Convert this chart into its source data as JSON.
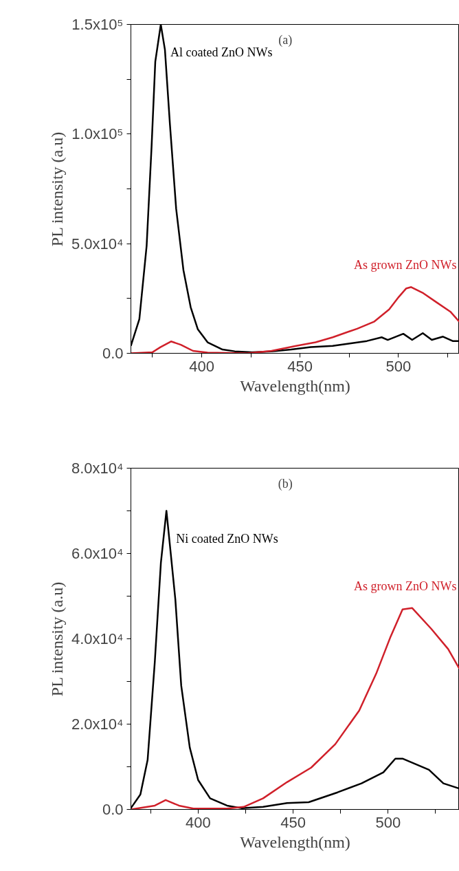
{
  "chart_data": [
    {
      "type": "line",
      "title": "(a)",
      "xlabel": "Wavelength(nm)",
      "ylabel": "PL intensity (a.u)",
      "xlim": [
        364,
        531
      ],
      "ylim": [
        0,
        150000
      ],
      "xticks": [
        {
          "value": 375,
          "label": null
        },
        400,
        {
          "value": 425,
          "label": null
        },
        450,
        {
          "value": 475,
          "label": null
        },
        500,
        {
          "value": 525,
          "label": null
        }
      ],
      "yticks": [
        {
          "value": 0,
          "label": "0.0"
        },
        {
          "value": 25000,
          "label": null
        },
        {
          "value": 50000,
          "label": "5.0x10⁴"
        },
        {
          "value": 75000,
          "label": null
        },
        {
          "value": 100000,
          "label": "1.0x10⁵"
        },
        {
          "value": 125000,
          "label": null
        },
        {
          "value": 150000,
          "label": "1.5x10⁵"
        }
      ],
      "grid": false,
      "line_style": "solid",
      "series": [
        {
          "name": "Al coated ZnO NWs",
          "color": "#000000",
          "x": [
            364,
            368.3,
            372,
            374.5,
            376.4,
            379.2,
            381.3,
            383.8,
            387,
            390.7,
            394.4,
            398,
            403,
            410.6,
            416.8,
            425.5,
            435.5,
            445.5,
            455.4,
            466.6,
            475.3,
            484,
            491.5,
            494.6,
            502.5,
            507,
            512.4,
            517,
            522.7,
            527.6,
            530.9
          ],
          "values": [
            3400,
            15600,
            49000,
            94000,
            133000,
            150000,
            138500,
            105000,
            66000,
            38000,
            21000,
            11000,
            5000,
            1700,
            900,
            500,
            900,
            1700,
            2800,
            3400,
            4500,
            5600,
            7300,
            6100,
            8900,
            6100,
            9200,
            6100,
            7600,
            5600,
            5600
          ]
        },
        {
          "name": "As grown ZnO NWs",
          "color": "#d0202a",
          "x": [
            364,
            375,
            379,
            384.4,
            389.4,
            395.6,
            403,
            423,
            435.5,
            448,
            457.9,
            466.6,
            479,
            487.8,
            495.3,
            500.2,
            504,
            506.5,
            512.7,
            519,
            526.4,
            530.9
          ],
          "values": [
            0,
            500,
            2800,
            5400,
            3900,
            1100,
            300,
            0,
            1100,
            3400,
            5000,
            7300,
            11200,
            14500,
            20000,
            25700,
            29600,
            30200,
            27400,
            23500,
            19000,
            14500
          ]
        }
      ]
    },
    {
      "type": "line",
      "title": "(b)",
      "xlabel": "Wavelength(nm)",
      "ylabel": "PL intensity (a.u)",
      "xlim": [
        364.6,
        537.5
      ],
      "ylim": [
        0,
        80000
      ],
      "xticks": [
        {
          "value": 375,
          "label": null
        },
        400,
        {
          "value": 425,
          "label": null
        },
        450,
        {
          "value": 475,
          "label": null
        },
        500,
        {
          "value": 525,
          "label": null
        }
      ],
      "yticks": [
        {
          "value": 0,
          "label": "0.0"
        },
        {
          "value": 10000,
          "label": null
        },
        {
          "value": 20000,
          "label": "2.0x10⁴"
        },
        {
          "value": 30000,
          "label": null
        },
        {
          "value": 40000,
          "label": "4.0x10⁴"
        },
        {
          "value": 50000,
          "label": null
        },
        {
          "value": 60000,
          "label": "6.0x10⁴"
        },
        {
          "value": 70000,
          "label": null
        },
        {
          "value": 80000,
          "label": "8.0x10⁴"
        }
      ],
      "grid": false,
      "line_style": "solid",
      "series": [
        {
          "name": "Ni coated ZnO NWs",
          "color": "#000000",
          "x": [
            364.6,
            369.6,
            373.4,
            377.2,
            380.4,
            383.3,
            385.4,
            388,
            391.1,
            395.6,
            400,
            406.3,
            415.2,
            422.8,
            434.2,
            446.8,
            458.2,
            473.4,
            486,
            497.5,
            503.8,
            507.6,
            521.5,
            529.1,
            537.5
          ],
          "values": [
            300,
            3500,
            11600,
            34700,
            57900,
            70000,
            60800,
            49200,
            29000,
            14500,
            6900,
            2600,
            900,
            300,
            600,
            1500,
            1700,
            4000,
            6100,
            8700,
            11900,
            11900,
            9300,
            6100,
            4900
          ]
        },
        {
          "name": "As grown ZnO NWs",
          "color": "#d0202a",
          "x": [
            364.6,
            377.2,
            382.9,
            389.9,
            397.5,
            415.2,
            424,
            434.2,
            446.8,
            459.5,
            472.2,
            484.8,
            493.7,
            501.3,
            507.6,
            512.7,
            522.8,
            531.6,
            537.5
          ],
          "values": [
            0,
            900,
            2200,
            900,
            200,
            200,
            600,
            2600,
            6400,
            9800,
            15300,
            23200,
            31800,
            40500,
            46900,
            47200,
            42300,
            37600,
            33000
          ]
        }
      ]
    }
  ]
}
